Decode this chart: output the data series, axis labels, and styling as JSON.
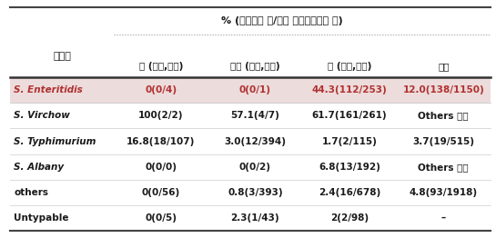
{
  "title": "% (내성균주 수/전체 살모넬라균주 수)",
  "col_header_label": "혁청형",
  "col_headers": [
    "소 (가축,도체)",
    "돼지 (가축,도체)",
    "닭 (가축,도체)",
    "사람"
  ],
  "rows": [
    [
      "S. Enteritidis",
      "0(0/4)",
      "0(0/1)",
      "44.3(112/253)",
      "12.0(138/1150)"
    ],
    [
      "S. Virchow",
      "100(2/2)",
      "57.1(4/7)",
      "61.7(161/261)",
      "Others 포함"
    ],
    [
      "S. Typhimurium",
      "16.8(18/107)",
      "3.0(12/394)",
      "1.7(2/115)",
      "3.7(19/515)"
    ],
    [
      "S. Albany",
      "0(0/0)",
      "0(0/2)",
      "6.8(13/192)",
      "Others 포함"
    ],
    [
      "others",
      "0(0/56)",
      "0.8(3/393)",
      "2.4(16/678)",
      "4.8(93/1918)"
    ],
    [
      "Untypable",
      "0(0/5)",
      "2.3(1/43)",
      "2(2/98)",
      "–"
    ]
  ],
  "highlight_row": 0,
  "highlight_bg": "#ecdcdb",
  "highlight_text_color": "#b03030",
  "normal_text_color": "#1a1a1a",
  "header_text_color": "#1a1a1a",
  "fig_bg": "#ffffff"
}
